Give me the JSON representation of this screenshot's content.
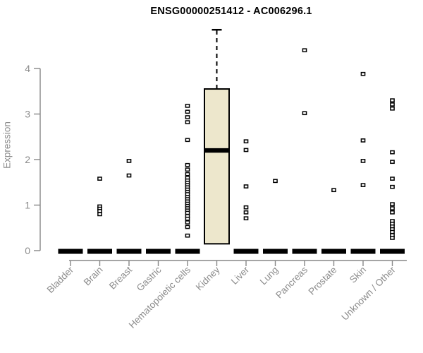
{
  "chart_data": {
    "type": "boxplot",
    "title": "ENSG00000251412 - AC006296.1",
    "xlabel": "",
    "ylabel": "Expression",
    "ylim": [
      0,
      4.9
    ],
    "y_ticks": [
      0,
      1,
      2,
      3,
      4
    ],
    "grid": false,
    "legend": "none",
    "colors": {
      "box_fill": "#EDE7CC",
      "box_stroke": "#000000",
      "zero_bar": "#000000",
      "point_stroke": "#000000",
      "axis": "#878787",
      "label_text": "#8c8c8c",
      "title_text": "#000000"
    },
    "groups": [
      {
        "label": "Bladder",
        "zero_bar": true,
        "points": []
      },
      {
        "label": "Brain",
        "zero_bar": true,
        "points": [
          1.58,
          0.97,
          0.92,
          0.87,
          0.8
        ]
      },
      {
        "label": "Breast",
        "zero_bar": true,
        "points": [
          1.97,
          1.65
        ]
      },
      {
        "label": "Gastric",
        "zero_bar": true,
        "points": []
      },
      {
        "label": "Hematopoietic cells",
        "zero_bar": true,
        "points": [
          3.18,
          3.05,
          2.93,
          2.82,
          2.43,
          1.88,
          1.78,
          1.68,
          1.6,
          1.54,
          1.49,
          1.44,
          1.39,
          1.34,
          1.29,
          1.24,
          1.18,
          1.13,
          1.08,
          1.03,
          0.98,
          0.93,
          0.88,
          0.83,
          0.76,
          0.7,
          0.62,
          0.52,
          0.33
        ]
      },
      {
        "label": "Kidney",
        "zero_bar": false,
        "points": [],
        "box": {
          "q1": 0.15,
          "median": 2.2,
          "q3": 3.55,
          "whisker_high": 4.85
        }
      },
      {
        "label": "Liver",
        "zero_bar": true,
        "points": [
          2.4,
          2.21,
          1.41,
          0.95,
          0.84,
          0.71
        ]
      },
      {
        "label": "Lung",
        "zero_bar": true,
        "points": [
          1.53
        ]
      },
      {
        "label": "Pancreas",
        "zero_bar": true,
        "points": [
          4.4,
          3.02
        ]
      },
      {
        "label": "Prostate",
        "zero_bar": true,
        "points": [
          1.33
        ]
      },
      {
        "label": "Skin",
        "zero_bar": true,
        "points": [
          3.88,
          2.42,
          1.97,
          1.44
        ]
      },
      {
        "label": "Unknown / Other",
        "zero_bar": true,
        "points": [
          3.3,
          3.21,
          3.12,
          2.16,
          1.95,
          1.58,
          1.4,
          1.02,
          0.93,
          0.84,
          0.65,
          0.59,
          0.53,
          0.47,
          0.41,
          0.34,
          0.28
        ]
      }
    ]
  }
}
